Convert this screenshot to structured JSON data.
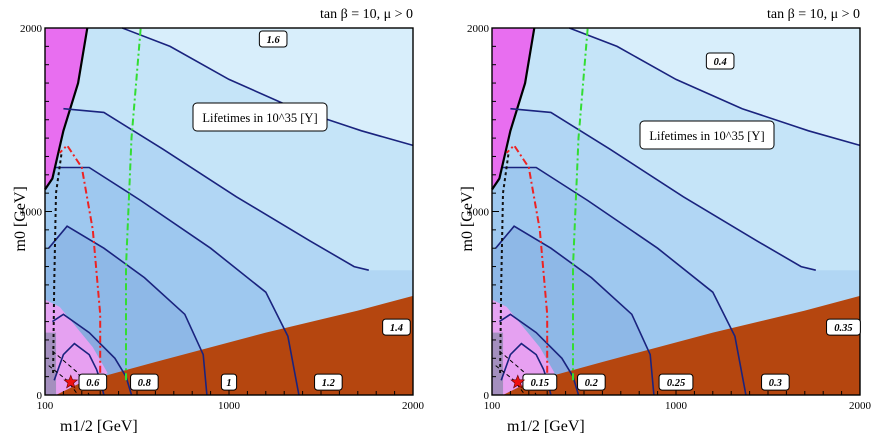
{
  "chart_data": [
    {
      "type": "contour",
      "title": "tan β = 10,  μ > 0",
      "xlabel": "m1/2 [GeV]",
      "ylabel": "m0 [GeV]",
      "xlim": [
        100,
        2000
      ],
      "ylim": [
        0,
        2000
      ],
      "x_ticks": [
        "100",
        "1000",
        "2000"
      ],
      "y_ticks": [
        "0",
        "1000",
        "2000"
      ],
      "annotation": "Lifetimes in 10^35 [Y]",
      "contour_labels": [
        {
          "text": "0.6",
          "x": 240,
          "y": 75
        },
        {
          "text": "0.8",
          "x": 360,
          "y": 75
        },
        {
          "text": "1",
          "x": 925,
          "y": 75
        },
        {
          "text": "1.2",
          "x": 1500,
          "y": 75
        },
        {
          "text": "1.4",
          "x": 1900,
          "y": 680
        },
        {
          "text": "1.6",
          "x": 1200,
          "y": 1950
        }
      ],
      "benchmark_star": {
        "x": 160,
        "y": 70
      },
      "colors": {
        "contour": "#1a237e",
        "lsp_region": "#b5460f",
        "excluded": "#e86ef0",
        "dm_band": "#9bd5f0",
        "pink_region": "#f5a0f5",
        "higgs_line": "#ee2222",
        "chargino_line": "#111111",
        "bsg_line": "#33dd33"
      }
    },
    {
      "type": "contour",
      "title": "tan β = 10,  μ > 0",
      "xlabel": "m1/2 [GeV]",
      "ylabel": "m0 [GeV]",
      "xlim": [
        100,
        2000
      ],
      "ylim": [
        0,
        2000
      ],
      "x_ticks": [
        "100",
        "1000",
        "2000"
      ],
      "y_ticks": [
        "0",
        "1000",
        "2000"
      ],
      "annotation": "Lifetimes in 10^35 [Y]",
      "contour_labels": [
        {
          "text": "0.15",
          "x": 240,
          "y": 75
        },
        {
          "text": "0.2",
          "x": 480,
          "y": 75
        },
        {
          "text": "0.25",
          "x": 960,
          "y": 75
        },
        {
          "text": "0.3",
          "x": 1450,
          "y": 75
        },
        {
          "text": "0.35",
          "x": 1920,
          "y": 380
        },
        {
          "text": "0.4",
          "x": 1100,
          "y": 1820
        }
      ],
      "benchmark_star": {
        "x": 160,
        "y": 70
      },
      "colors": {
        "contour": "#1a237e",
        "lsp_region": "#b5460f",
        "excluded": "#e86ef0",
        "dm_band": "#9bd5f0",
        "pink_region": "#f5a0f5",
        "higgs_line": "#ee2222",
        "chargino_line": "#111111",
        "bsg_line": "#33dd33"
      }
    }
  ]
}
